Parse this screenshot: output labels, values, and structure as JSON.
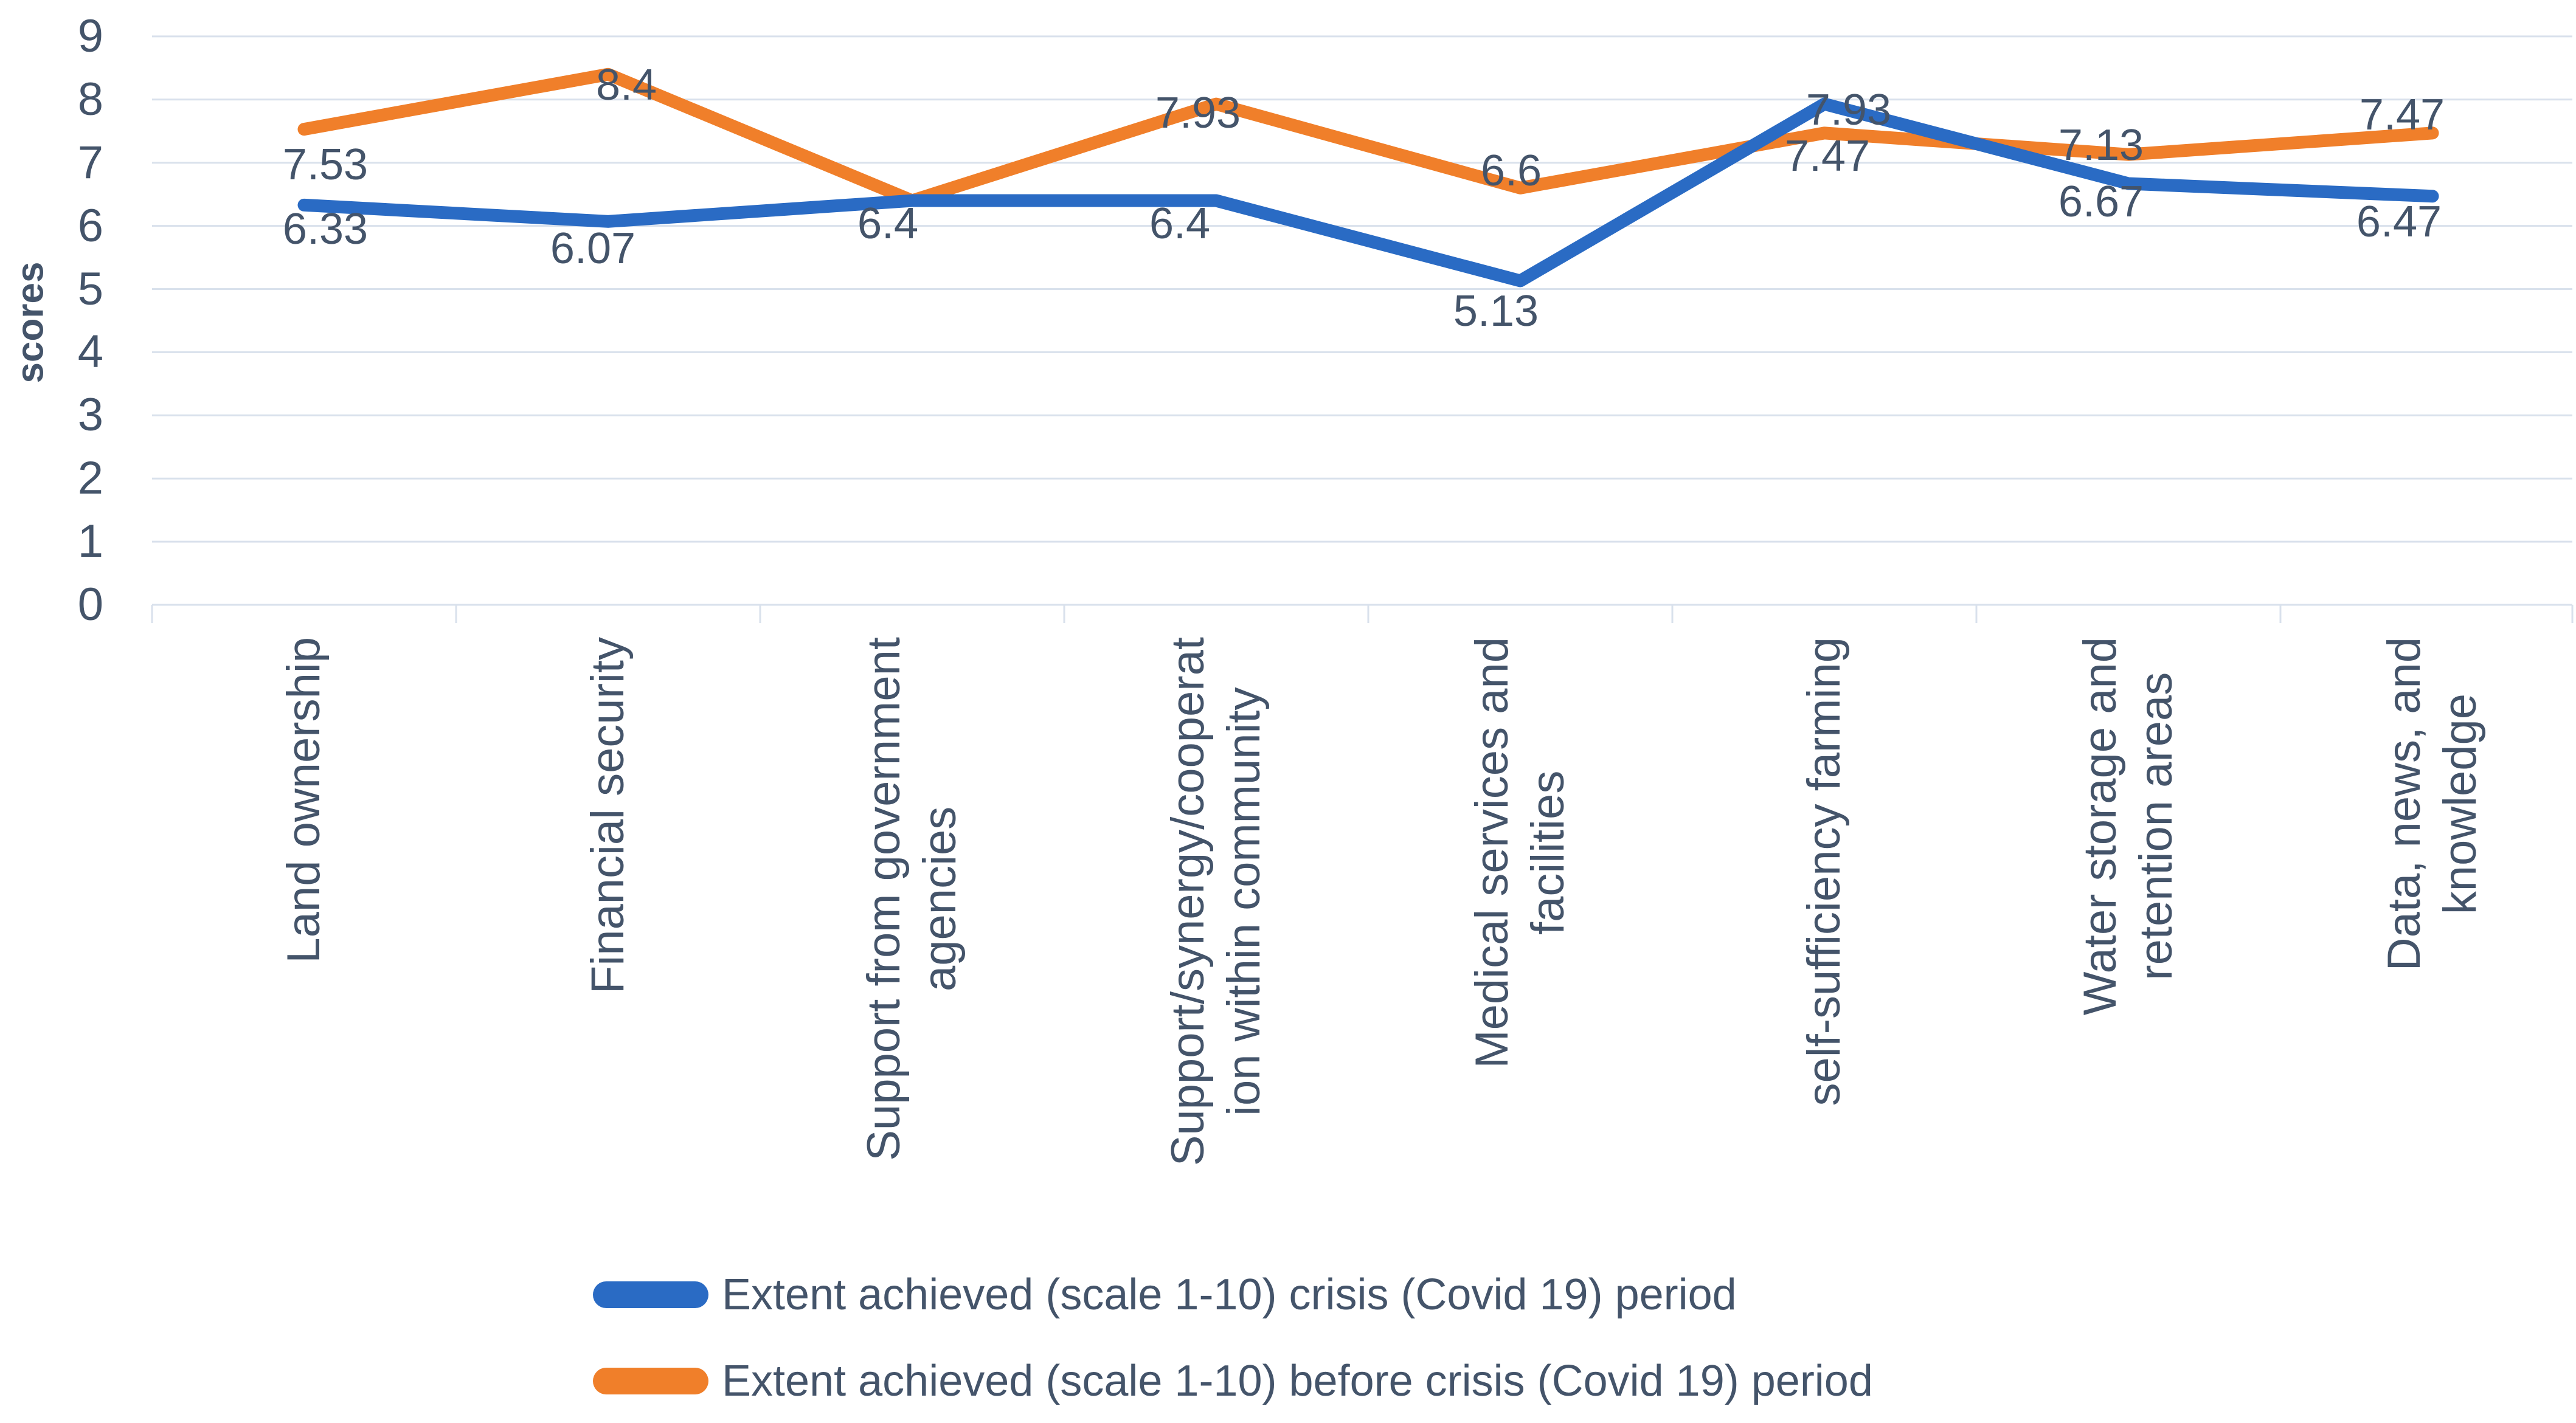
{
  "chart_data": {
    "type": "line",
    "title": "",
    "ylabel": "scores",
    "xlabel": "",
    "ylim": [
      0,
      9
    ],
    "yticks": [
      0,
      1,
      2,
      3,
      4,
      5,
      6,
      7,
      8,
      9
    ],
    "grid": true,
    "legend_position": "bottom-left",
    "categories": [
      {
        "label": "Land ownership",
        "lines": [
          "Land ownership"
        ]
      },
      {
        "label": "Financial security",
        "lines": [
          "Financial security"
        ]
      },
      {
        "label": "Support from government agencies",
        "lines": [
          "Support from government",
          "agencies"
        ]
      },
      {
        "label": "Support/synergy/cooperation within community",
        "lines": [
          "Support/synergy/cooperat",
          "ion within community"
        ]
      },
      {
        "label": "Medical services and facilities",
        "lines": [
          "Medical services and",
          "facilities"
        ]
      },
      {
        "label": "self-sufficiency farming",
        "lines": [
          "self-sufficiency farming"
        ]
      },
      {
        "label": "Water storage and retention areas",
        "lines": [
          "Water storage and",
          "retention areas"
        ]
      },
      {
        "label": "Data, news, and knowledge",
        "lines": [
          "Data, news, and",
          "knowledge"
        ]
      }
    ],
    "series": [
      {
        "name": "Extent achieved (scale 1-10) crisis (Covid 19) period",
        "color": "#2A6BC4",
        "values": [
          6.33,
          6.07,
          6.4,
          6.4,
          5.13,
          7.93,
          6.67,
          6.47
        ]
      },
      {
        "name": "Extent achieved (scale 1-10) before crisis (Covid 19) period",
        "color": "#F07F2A",
        "values": [
          7.53,
          8.4,
          6.4,
          7.93,
          6.6,
          7.47,
          7.13,
          7.47
        ]
      }
    ],
    "colors": {
      "gridline": "#D9E1EC",
      "text": "#44546A"
    }
  }
}
